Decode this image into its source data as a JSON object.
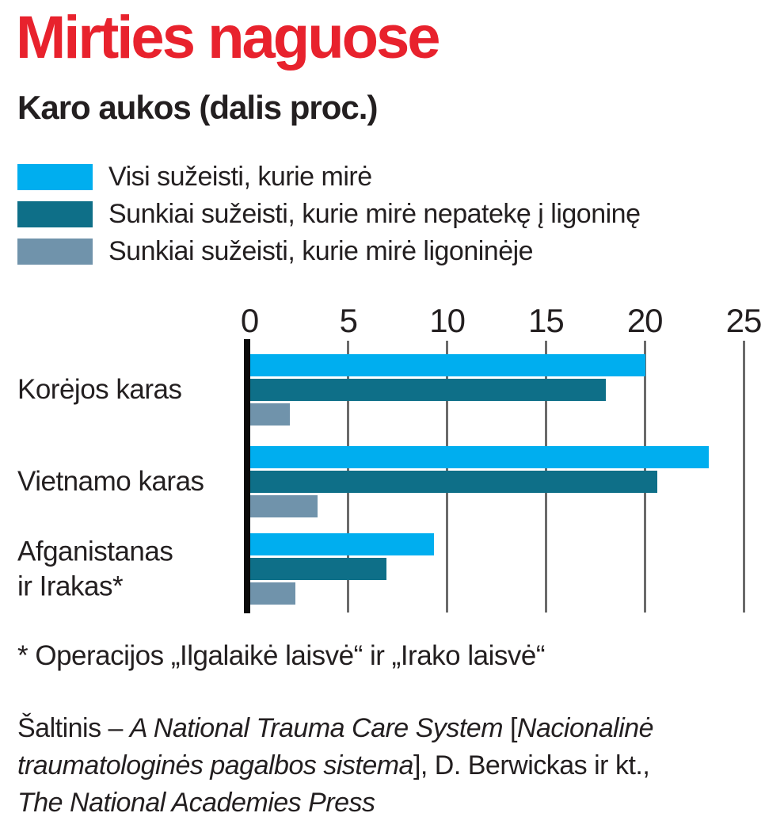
{
  "title": "Mirties naguose",
  "subtitle": "Karo aukos (dalis proc.)",
  "colors": {
    "title_red": "#e8222d",
    "text": "#231f20",
    "gridline": "#6b6b6b",
    "axis_line": "#0b0b0b",
    "series_all_wounded": "#00aeef",
    "series_died_before_hospital": "#0e6f88",
    "series_died_in_hospital": "#7093ab"
  },
  "legend": {
    "items": [
      {
        "key": "all-wounded-died",
        "label": "Visi sužeisti, kurie mirė",
        "color": "#00aeef"
      },
      {
        "key": "died-before-hospital",
        "label": "Sunkiai sužeisti, kurie mirė nepatekę į ligoninę",
        "color": "#0e6f88"
      },
      {
        "key": "died-in-hospital",
        "label": "Sunkiai sužeisti, kurie mirė ligoninėje",
        "color": "#7093ab"
      }
    ]
  },
  "chart_data": {
    "type": "bar",
    "orientation": "horizontal",
    "unit": "percent",
    "categories": [
      "Korėjos karas",
      "Vietnamo karas",
      "Afganistanas\nir Irakas*"
    ],
    "category_keys": [
      "korejos-karas",
      "vietnamo-karas",
      "afganistanas-ir-irakas"
    ],
    "series": [
      {
        "name": "Visi sužeisti, kurie mirė",
        "key": "all-wounded-died",
        "color": "#00aeef",
        "values": [
          20.0,
          23.2,
          9.3
        ]
      },
      {
        "name": "Sunkiai sužeisti, kurie mirė nepatekę į ligoninę",
        "key": "died-before-hospital",
        "color": "#0e6f88",
        "values": [
          18.0,
          20.6,
          6.9
        ]
      },
      {
        "name": "Sunkiai sužeisti, kurie mirė ligoninėje",
        "key": "died-in-hospital",
        "color": "#7093ab",
        "values": [
          2.0,
          3.4,
          2.3
        ]
      }
    ],
    "x_axis": {
      "ticks": [
        0,
        5,
        10,
        15,
        20,
        25
      ],
      "min": 0,
      "max": 25,
      "grid": true,
      "gridline_color": "#6b6b6b"
    },
    "legend_position": "top-left"
  },
  "footnote": "* Operacijos „Ilgalaikė laisvė“ ir „Irako laisvė“",
  "source_lines": [
    {
      "segments": [
        {
          "text": "Šaltinis – ",
          "italic": false
        },
        {
          "text": "A National Trauma Care System ",
          "italic": true
        },
        {
          "text": "[",
          "italic": false
        },
        {
          "text": "Nacionalinė",
          "italic": true
        }
      ]
    },
    {
      "segments": [
        {
          "text": "traumatologinės pagalbos sistema",
          "italic": true
        },
        {
          "text": "], D. Berwickas ir kt.,",
          "italic": false
        }
      ]
    },
    {
      "segments": [
        {
          "text": "The National Academies Press",
          "italic": true
        }
      ]
    }
  ]
}
